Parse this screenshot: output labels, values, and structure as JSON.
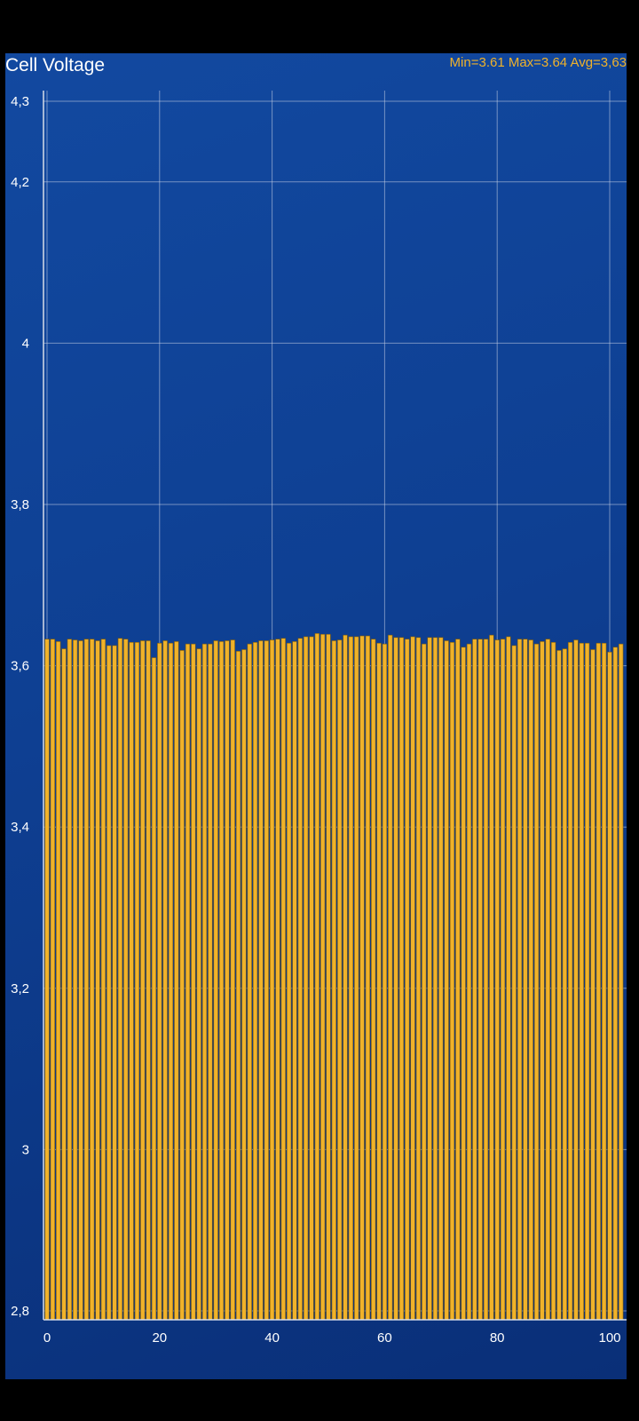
{
  "chart_data": {
    "type": "bar",
    "title": "Cell Voltage",
    "stats": "Min=3.61 Max=3.64 Avg=3,63",
    "xlabel": "",
    "ylabel": "",
    "ylim": [
      2.8,
      4.3
    ],
    "xlim": [
      0,
      100
    ],
    "x_ticks": [
      "0",
      "20",
      "40",
      "60",
      "80",
      "100"
    ],
    "y_ticks": [
      {
        "value": 4.3,
        "label": "4,3"
      },
      {
        "value": 4.2,
        "label": "4,2"
      },
      {
        "value": 4.0,
        "label": "4"
      },
      {
        "value": 3.8,
        "label": "3,8"
      },
      {
        "value": 3.6,
        "label": "3,6"
      },
      {
        "value": 3.4,
        "label": "3,4"
      },
      {
        "value": 3.2,
        "label": "3,2"
      },
      {
        "value": 3.0,
        "label": "3"
      },
      {
        "value": 2.8,
        "label": "2,8"
      }
    ],
    "grid": true,
    "bar_color": "#f0b22a",
    "values": [
      3.633,
      3.633,
      3.63,
      3.621,
      3.633,
      3.632,
      3.631,
      3.633,
      3.633,
      3.631,
      3.633,
      3.625,
      3.625,
      3.634,
      3.633,
      3.629,
      3.629,
      3.631,
      3.631,
      3.61,
      3.628,
      3.631,
      3.628,
      3.63,
      3.619,
      3.627,
      3.627,
      3.621,
      3.627,
      3.627,
      3.631,
      3.63,
      3.631,
      3.632,
      3.618,
      3.62,
      3.627,
      3.629,
      3.631,
      3.631,
      3.632,
      3.633,
      3.634,
      3.628,
      3.63,
      3.634,
      3.636,
      3.636,
      3.64,
      3.639,
      3.639,
      3.631,
      3.632,
      3.638,
      3.636,
      3.636,
      3.637,
      3.637,
      3.633,
      3.628,
      3.627,
      3.638,
      3.635,
      3.635,
      3.633,
      3.636,
      3.635,
      3.627,
      3.635,
      3.635,
      3.635,
      3.631,
      3.629,
      3.633,
      3.623,
      3.627,
      3.633,
      3.633,
      3.633,
      3.638,
      3.632,
      3.633,
      3.636,
      3.625,
      3.633,
      3.633,
      3.632,
      3.627,
      3.63,
      3.633,
      3.629,
      3.619,
      3.621,
      3.629,
      3.632,
      3.628,
      3.628,
      3.62,
      3.628,
      3.628,
      3.617,
      3.623,
      3.627
    ]
  }
}
